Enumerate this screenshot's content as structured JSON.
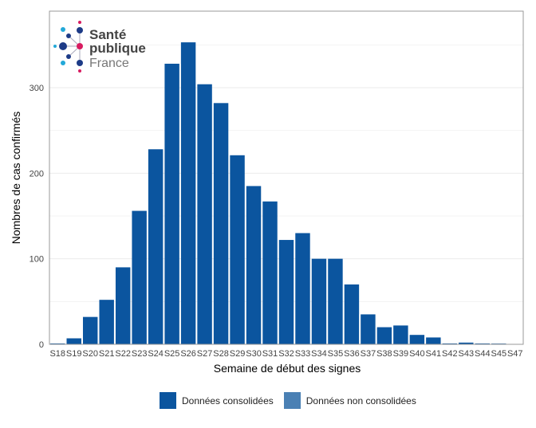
{
  "chart_data": {
    "type": "bar",
    "xlabel": "Semaine de début des signes",
    "ylabel": "Nombres de cas confirmés",
    "ylim": [
      0,
      370
    ],
    "yticks": [
      0,
      100,
      200,
      300
    ],
    "grid": true,
    "legend_position": "bottom",
    "categories": [
      "S18",
      "S19",
      "S20",
      "S21",
      "S22",
      "S23",
      "S24",
      "S25",
      "S26",
      "S27",
      "S28",
      "S29",
      "S30",
      "S31",
      "S32",
      "S33",
      "S34",
      "S35",
      "S36",
      "S37",
      "S38",
      "S39",
      "S40",
      "S41",
      "S42",
      "S43",
      "S44",
      "S45",
      "S47"
    ],
    "series": [
      {
        "name": "Données consolidées",
        "color": "#0b559f",
        "values": [
          1,
          7,
          32,
          52,
          90,
          156,
          228,
          328,
          353,
          304,
          282,
          221,
          185,
          167,
          122,
          130,
          100,
          100,
          70,
          35,
          20,
          22,
          11,
          8,
          1,
          2,
          1,
          0,
          0
        ]
      },
      {
        "name": "Données non consolidées",
        "color": "#4a80b4",
        "values": [
          0,
          0,
          0,
          0,
          0,
          0,
          0,
          0,
          0,
          0,
          0,
          0,
          0,
          0,
          0,
          0,
          0,
          0,
          0,
          0,
          0,
          0,
          0,
          0,
          0,
          0,
          0,
          1,
          0
        ]
      }
    ]
  },
  "logo": {
    "line1": "Santé",
    "line2": "publique",
    "line3": "France"
  }
}
